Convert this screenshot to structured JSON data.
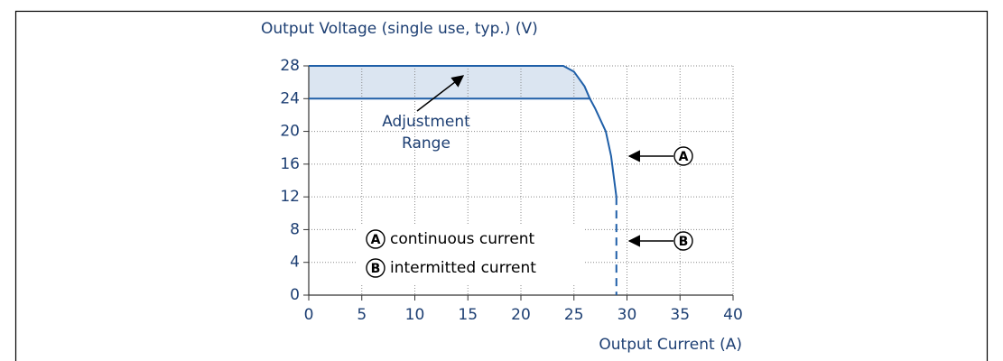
{
  "chart_data": {
    "type": "line",
    "title": "Output Voltage (single use, typ.) (V)",
    "x_label": "Output Current (A)",
    "xlim": [
      0,
      40
    ],
    "xticks": [
      0,
      5,
      10,
      15,
      20,
      25,
      30,
      35,
      40
    ],
    "ylim": [
      0,
      28
    ],
    "yticks": [
      0,
      4,
      8,
      12,
      16,
      20,
      24,
      28
    ],
    "grid": true,
    "fill_color": "#dbe5f1",
    "series": [
      {
        "name": "continuous current",
        "marker": "A",
        "color": "#1f5fa8",
        "dashed": false,
        "x": [
          0,
          24,
          25,
          26,
          26.5,
          27,
          28,
          28.5,
          29
        ],
        "values": [
          28,
          28,
          27.3,
          25.5,
          24,
          22.8,
          20,
          17,
          12
        ]
      },
      {
        "name": "intermitted current",
        "marker": "B",
        "color": "#1f5fa8",
        "dashed": true,
        "x": [
          29,
          29
        ],
        "values": [
          12,
          0
        ]
      },
      {
        "color": "#1f5fa8",
        "dashed": false,
        "x": [
          0,
          26.5
        ],
        "values": [
          24,
          24
        ]
      }
    ],
    "annotation": [
      "Adjustment",
      "Range"
    ]
  }
}
